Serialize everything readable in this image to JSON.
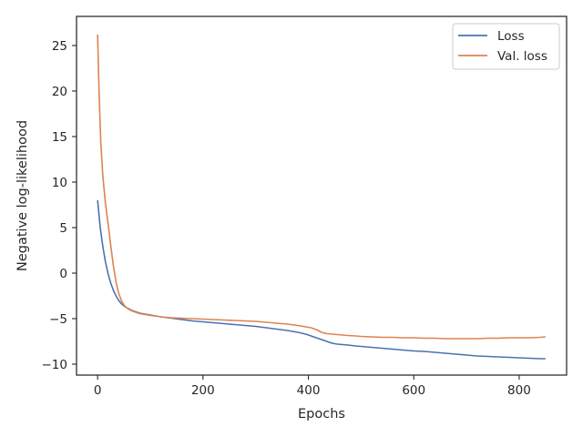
{
  "chart_data": {
    "type": "line",
    "title": "",
    "xlabel": "Epochs",
    "ylabel": "Negative log-likelihood",
    "xlim": [
      -40,
      890
    ],
    "ylim": [
      -11.2,
      28.2
    ],
    "x_ticks": [
      0,
      200,
      400,
      600,
      800
    ],
    "x_tick_labels": [
      "0",
      "200",
      "400",
      "600",
      "800"
    ],
    "y_ticks": [
      -10,
      -5,
      0,
      5,
      10,
      15,
      20,
      25
    ],
    "y_tick_labels": [
      "−10",
      "−5",
      "0",
      "5",
      "10",
      "15",
      "20",
      "25"
    ],
    "grid": false,
    "legend_position": "top-right",
    "series": [
      {
        "name": "Loss",
        "color": "#4c72b0",
        "x": [
          0,
          5,
          10,
          15,
          20,
          25,
          30,
          35,
          40,
          45,
          50,
          55,
          60,
          65,
          70,
          75,
          80,
          85,
          90,
          100,
          110,
          120,
          140,
          160,
          180,
          200,
          220,
          240,
          260,
          280,
          300,
          320,
          340,
          360,
          380,
          395,
          405,
          415,
          425,
          435,
          445,
          455,
          465,
          475,
          490,
          500,
          520,
          540,
          560,
          580,
          600,
          620,
          640,
          660,
          680,
          700,
          720,
          740,
          760,
          780,
          800,
          820,
          840,
          850
        ],
        "values": [
          8.0,
          5.0,
          2.9,
          1.2,
          -0.1,
          -1.1,
          -1.9,
          -2.5,
          -3.0,
          -3.35,
          -3.6,
          -3.8,
          -3.95,
          -4.1,
          -4.2,
          -4.3,
          -4.4,
          -4.45,
          -4.5,
          -4.6,
          -4.7,
          -4.8,
          -4.95,
          -5.1,
          -5.25,
          -5.35,
          -5.45,
          -5.55,
          -5.65,
          -5.75,
          -5.85,
          -6.0,
          -6.15,
          -6.3,
          -6.5,
          -6.7,
          -6.9,
          -7.1,
          -7.3,
          -7.5,
          -7.7,
          -7.8,
          -7.85,
          -7.9,
          -8.0,
          -8.05,
          -8.15,
          -8.25,
          -8.35,
          -8.45,
          -8.55,
          -8.6,
          -8.7,
          -8.8,
          -8.9,
          -9.0,
          -9.1,
          -9.15,
          -9.2,
          -9.25,
          -9.3,
          -9.35,
          -9.4,
          -9.4
        ]
      },
      {
        "name": "Val. loss",
        "color": "#dd8452",
        "x": [
          0,
          3,
          6,
          10,
          15,
          20,
          25,
          30,
          35,
          40,
          45,
          50,
          55,
          60,
          65,
          70,
          75,
          80,
          90,
          100,
          120,
          140,
          160,
          180,
          200,
          220,
          240,
          260,
          280,
          300,
          320,
          340,
          360,
          380,
          395,
          405,
          415,
          425,
          435,
          445,
          455,
          465,
          475,
          490,
          500,
          520,
          540,
          560,
          580,
          600,
          620,
          640,
          660,
          680,
          700,
          720,
          740,
          760,
          780,
          800,
          820,
          840,
          850
        ],
        "values": [
          26.2,
          19.5,
          14.5,
          10.6,
          7.6,
          5.4,
          3.0,
          0.8,
          -1.0,
          -2.2,
          -3.0,
          -3.5,
          -3.8,
          -4.0,
          -4.15,
          -4.25,
          -4.35,
          -4.45,
          -4.55,
          -4.65,
          -4.8,
          -4.9,
          -4.95,
          -5.0,
          -5.05,
          -5.1,
          -5.15,
          -5.2,
          -5.25,
          -5.3,
          -5.4,
          -5.5,
          -5.6,
          -5.75,
          -5.9,
          -6.0,
          -6.2,
          -6.5,
          -6.65,
          -6.7,
          -6.75,
          -6.8,
          -6.85,
          -6.9,
          -6.95,
          -7.0,
          -7.05,
          -7.05,
          -7.1,
          -7.1,
          -7.15,
          -7.15,
          -7.2,
          -7.2,
          -7.2,
          -7.2,
          -7.15,
          -7.15,
          -7.1,
          -7.1,
          -7.1,
          -7.05,
          -7.0
        ]
      }
    ]
  }
}
